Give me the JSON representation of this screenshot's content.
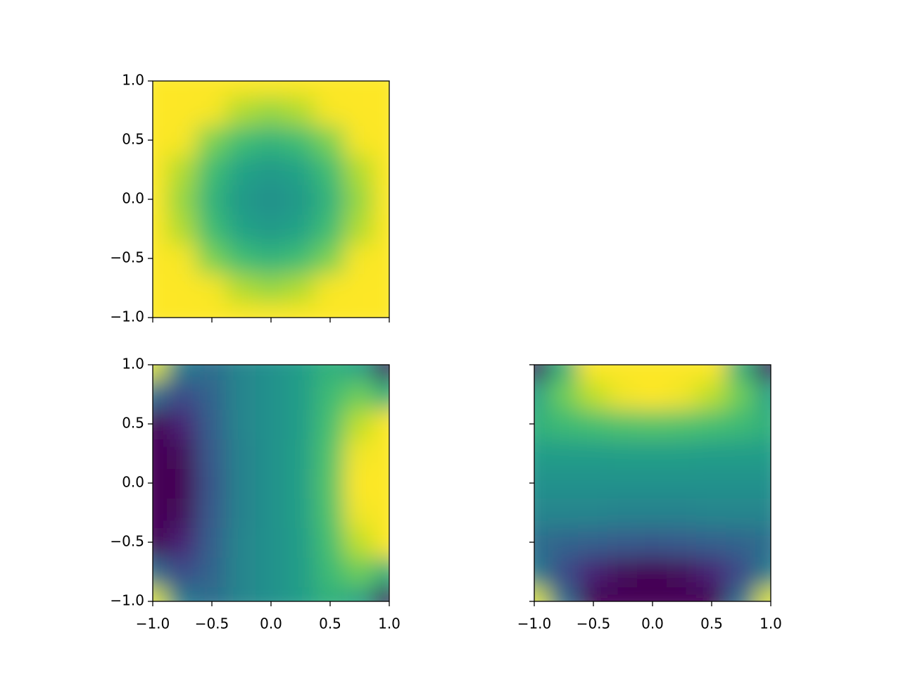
{
  "chart_data": [
    {
      "type": "heatmap",
      "colormap": "viridis",
      "clim": [
        0,
        1
      ],
      "x": [
        -1,
        -0.75,
        -0.5,
        -0.25,
        0,
        0.25,
        0.5,
        0.75,
        1
      ],
      "y": [
        -1,
        -0.75,
        -0.5,
        -0.25,
        0,
        0.25,
        0.5,
        0.75,
        1
      ],
      "z": [
        [
          1,
          1,
          1,
          1,
          1,
          1,
          1,
          1,
          1
        ],
        [
          1,
          1,
          0.99,
          0.88,
          0.84,
          0.88,
          0.99,
          1,
          1
        ],
        [
          1,
          0.99,
          0.8,
          0.69,
          0.65,
          0.69,
          0.8,
          0.99,
          1
        ],
        [
          1,
          0.88,
          0.69,
          0.58,
          0.54,
          0.58,
          0.69,
          0.88,
          1
        ],
        [
          1,
          0.84,
          0.65,
          0.54,
          0.5,
          0.54,
          0.65,
          0.84,
          1
        ],
        [
          1,
          0.88,
          0.69,
          0.58,
          0.54,
          0.58,
          0.69,
          0.88,
          1
        ],
        [
          1,
          0.99,
          0.8,
          0.69,
          0.65,
          0.69,
          0.8,
          0.99,
          1
        ],
        [
          1,
          1,
          0.99,
          0.88,
          0.84,
          0.88,
          0.99,
          1,
          1
        ],
        [
          1,
          1,
          1,
          1,
          1,
          1,
          1,
          1,
          1
        ]
      ],
      "xlim": [
        -1,
        1
      ],
      "ylim": [
        -1,
        1
      ],
      "xticks": [
        -1,
        -0.5,
        0,
        0.5,
        1
      ],
      "yticks": [
        {
          "value": -1,
          "label": "−1.0"
        },
        {
          "value": -0.5,
          "label": "−0.5"
        },
        {
          "value": 0,
          "label": "0.0"
        },
        {
          "value": 0.5,
          "label": "0.5"
        },
        {
          "value": 1,
          "label": "1.0"
        }
      ]
    },
    {
      "type": "heatmap",
      "colormap": "viridis",
      "clim": [
        0,
        1
      ],
      "x": [
        -1,
        -0.75,
        -0.5,
        -0.25,
        0,
        0.25,
        0.5,
        0.75,
        1
      ],
      "y": [
        -1,
        -0.75,
        -0.5,
        -0.25,
        0,
        0.25,
        0.5,
        0.75,
        1
      ],
      "z": [
        [
          0.95,
          0.42,
          0.36,
          0.45,
          0.5,
          0.55,
          0.64,
          0.58,
          0.05
        ],
        [
          0.36,
          0.23,
          0.32,
          0.45,
          0.5,
          0.55,
          0.68,
          0.77,
          0.64
        ],
        [
          0,
          0.1,
          0.3,
          0.45,
          0.5,
          0.55,
          0.7,
          0.9,
          1
        ],
        [
          0,
          0.02,
          0.28,
          0.44,
          0.5,
          0.56,
          0.72,
          0.98,
          1
        ],
        [
          0,
          0,
          0.27,
          0.44,
          0.5,
          0.56,
          0.73,
          1,
          1
        ],
        [
          0,
          0.02,
          0.28,
          0.44,
          0.5,
          0.56,
          0.72,
          0.98,
          1
        ],
        [
          0,
          0.1,
          0.3,
          0.45,
          0.5,
          0.55,
          0.7,
          0.9,
          1
        ],
        [
          0.36,
          0.23,
          0.32,
          0.45,
          0.5,
          0.55,
          0.68,
          0.77,
          0.64
        ],
        [
          0.95,
          0.42,
          0.36,
          0.45,
          0.5,
          0.55,
          0.64,
          0.58,
          0.05
        ]
      ],
      "xlim": [
        -1,
        1
      ],
      "ylim": [
        -1,
        1
      ],
      "xticks": [
        {
          "value": -1,
          "label": "−1.0"
        },
        {
          "value": -0.5,
          "label": "−0.5"
        },
        {
          "value": 0,
          "label": "0.0"
        },
        {
          "value": 0.5,
          "label": "0.5"
        },
        {
          "value": 1,
          "label": "1.0"
        }
      ],
      "yticks": [
        {
          "value": -1,
          "label": "−1.0"
        },
        {
          "value": -0.5,
          "label": "−0.5"
        },
        {
          "value": 0,
          "label": "0.0"
        },
        {
          "value": 0.5,
          "label": "0.5"
        },
        {
          "value": 1,
          "label": "1.0"
        }
      ]
    },
    {
      "type": "heatmap",
      "colormap": "viridis",
      "clim": [
        0,
        1
      ],
      "x": [
        -1,
        -0.75,
        -0.5,
        -0.25,
        0,
        0.25,
        0.5,
        0.75,
        1
      ],
      "y": [
        -1,
        -0.75,
        -0.5,
        -0.25,
        0,
        0.25,
        0.5,
        0.75,
        1
      ],
      "z": [
        [
          0.95,
          0.36,
          0,
          0,
          0,
          0,
          0,
          0.36,
          0.95
        ],
        [
          0.42,
          0.23,
          0.1,
          0.02,
          0,
          0.02,
          0.1,
          0.23,
          0.42
        ],
        [
          0.36,
          0.32,
          0.3,
          0.28,
          0.27,
          0.28,
          0.3,
          0.32,
          0.36
        ],
        [
          0.45,
          0.45,
          0.45,
          0.44,
          0.44,
          0.44,
          0.45,
          0.45,
          0.45
        ],
        [
          0.5,
          0.5,
          0.5,
          0.5,
          0.5,
          0.5,
          0.5,
          0.5,
          0.5
        ],
        [
          0.55,
          0.55,
          0.55,
          0.56,
          0.56,
          0.56,
          0.55,
          0.55,
          0.55
        ],
        [
          0.64,
          0.68,
          0.7,
          0.72,
          0.73,
          0.72,
          0.7,
          0.68,
          0.64
        ],
        [
          0.58,
          0.77,
          0.9,
          0.98,
          1,
          0.98,
          0.9,
          0.77,
          0.58
        ],
        [
          0.05,
          0.64,
          1,
          1,
          1,
          1,
          1,
          0.64,
          0.05
        ]
      ],
      "xlim": [
        -1,
        1
      ],
      "ylim": [
        -1,
        1
      ],
      "xticks": [
        {
          "value": -1,
          "label": "−1.0"
        },
        {
          "value": -0.5,
          "label": "−0.5"
        },
        {
          "value": 0,
          "label": "0.0"
        },
        {
          "value": 0.5,
          "label": "0.5"
        },
        {
          "value": 1,
          "label": "1.0"
        }
      ],
      "yticks": [
        -1,
        -0.5,
        0,
        0.5,
        1
      ]
    }
  ]
}
